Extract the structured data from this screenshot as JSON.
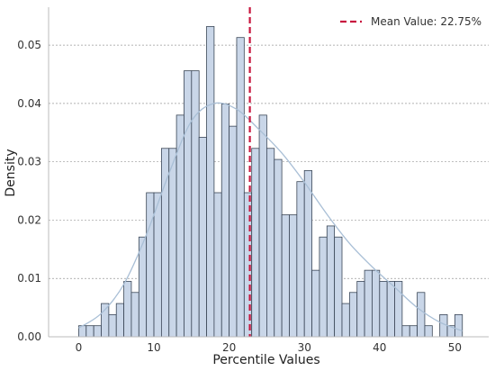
{
  "chart_data": {
    "type": "bar",
    "title": "",
    "xlabel": "Percentile Values",
    "ylabel": "Density",
    "xlim": [
      -4,
      54.5
    ],
    "ylim": [
      0,
      0.0565
    ],
    "xticks": [
      0,
      10,
      20,
      30,
      40,
      50
    ],
    "yticks": [
      0.0,
      0.01,
      0.02,
      0.03,
      0.04,
      0.05
    ],
    "ytick_labels": [
      "0.00",
      "0.01",
      "0.02",
      "0.03",
      "0.04",
      "0.05"
    ],
    "grid": "horizontal dashed",
    "bin_start": 0,
    "bin_width": 1,
    "values": [
      0.0019,
      0.0019,
      0.0019,
      0.0057,
      0.0038,
      0.0057,
      0.0095,
      0.0076,
      0.0171,
      0.0247,
      0.0247,
      0.0323,
      0.0323,
      0.038,
      0.0456,
      0.0456,
      0.0342,
      0.0532,
      0.0247,
      0.0399,
      0.0361,
      0.0513,
      0.0247,
      0.0323,
      0.038,
      0.0323,
      0.0304,
      0.0209,
      0.0209,
      0.0266,
      0.0285,
      0.0114,
      0.0171,
      0.019,
      0.0171,
      0.0057,
      0.0076,
      0.0095,
      0.0114,
      0.0114,
      0.0095,
      0.0095,
      0.0095,
      0.0019,
      0.0019,
      0.0076,
      0.0019,
      0.0,
      0.0038,
      0.0019,
      0.0038
    ],
    "kde": {
      "x": [
        0,
        3,
        6,
        9,
        12,
        15,
        18,
        21,
        24,
        27,
        30,
        33,
        36,
        39,
        42,
        45,
        48,
        51
      ],
      "y": [
        0.0015,
        0.004,
        0.009,
        0.0175,
        0.028,
        0.037,
        0.04,
        0.039,
        0.0355,
        0.0315,
        0.0265,
        0.021,
        0.016,
        0.012,
        0.0085,
        0.005,
        0.0025,
        0.001
      ]
    },
    "mean_value": 22.75,
    "legend": {
      "label": "Mean Value: 22.75%",
      "position": "top-right"
    },
    "colors": {
      "bar_fill": "#c9d6e8",
      "bar_edge": "#3a4656",
      "kde": "#a9bfd6",
      "mean_line": "#c8173f",
      "grid": "#999999"
    }
  }
}
